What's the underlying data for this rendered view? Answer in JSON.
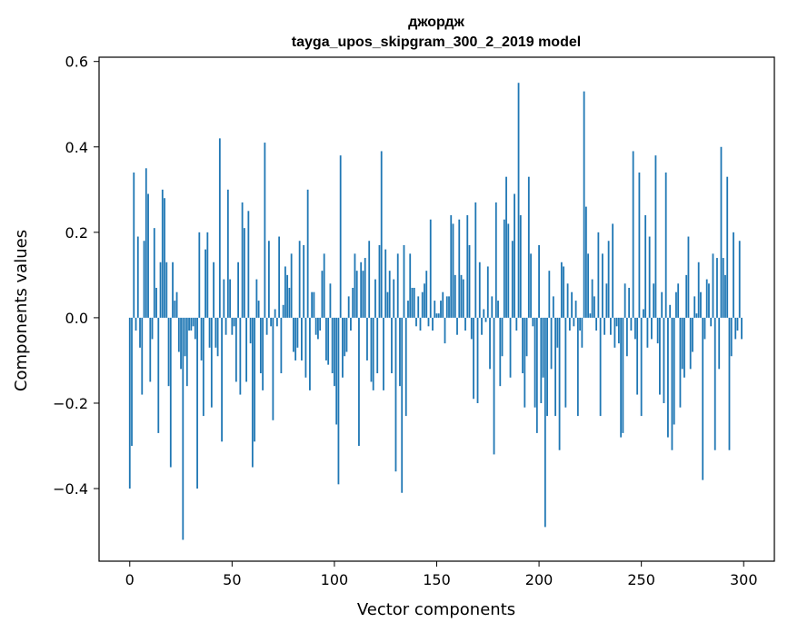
{
  "chart_data": {
    "type": "bar",
    "title": "джордж",
    "subtitle": "tayga_upos_skipgram_300_2_2019 model",
    "xlabel": "Vector components",
    "ylabel": "Components values",
    "xlim": [
      -15,
      315
    ],
    "ylim": [
      -0.57,
      0.61
    ],
    "xticks": [
      0,
      50,
      100,
      150,
      200,
      250,
      300
    ],
    "xtick_labels": [
      "0",
      "50",
      "100",
      "150",
      "200",
      "250",
      "300"
    ],
    "yticks": [
      -0.4,
      -0.2,
      0.0,
      0.2,
      0.4,
      0.6
    ],
    "ytick_labels": [
      "−0.4",
      "−0.2",
      "0.0",
      "0.2",
      "0.4",
      "0.6"
    ],
    "grid": false,
    "bar_color": "#1f77b4",
    "x": "0..299 (component index)",
    "values": [
      -0.4,
      -0.3,
      0.34,
      -0.03,
      0.19,
      -0.07,
      -0.18,
      0.18,
      0.35,
      0.29,
      -0.15,
      -0.05,
      0.21,
      0.07,
      -0.27,
      0.13,
      0.3,
      0.28,
      0.13,
      -0.16,
      -0.35,
      0.13,
      0.04,
      0.06,
      -0.08,
      -0.12,
      -0.52,
      -0.09,
      -0.16,
      -0.03,
      -0.03,
      -0.02,
      -0.05,
      -0.4,
      0.2,
      -0.1,
      -0.23,
      0.16,
      0.2,
      -0.07,
      -0.21,
      0.13,
      -0.07,
      -0.09,
      0.42,
      -0.29,
      0.09,
      -0.04,
      0.3,
      0.09,
      -0.04,
      -0.02,
      -0.15,
      0.13,
      -0.18,
      0.27,
      0.21,
      -0.15,
      0.25,
      -0.06,
      -0.35,
      -0.29,
      0.09,
      0.04,
      -0.13,
      -0.17,
      0.41,
      -0.04,
      0.18,
      -0.02,
      -0.24,
      0.02,
      -0.02,
      0.19,
      -0.13,
      0.03,
      0.12,
      0.1,
      0.07,
      0.15,
      -0.08,
      -0.1,
      -0.07,
      0.18,
      -0.1,
      0.17,
      -0.14,
      0.3,
      -0.17,
      0.06,
      0.06,
      -0.04,
      -0.05,
      -0.03,
      0.11,
      0.15,
      -0.1,
      -0.11,
      0.08,
      -0.13,
      -0.16,
      -0.25,
      -0.39,
      0.38,
      -0.14,
      -0.09,
      -0.08,
      0.05,
      -0.03,
      0.07,
      0.15,
      0.11,
      -0.3,
      0.13,
      0.11,
      0.14,
      -0.1,
      0.18,
      -0.15,
      -0.17,
      0.09,
      -0.13,
      0.17,
      0.39,
      -0.17,
      0.16,
      0.06,
      0.11,
      -0.13,
      0.09,
      -0.36,
      0.15,
      -0.16,
      -0.41,
      0.17,
      -0.23,
      0.04,
      0.15,
      0.07,
      0.07,
      -0.02,
      0.05,
      -0.03,
      0.06,
      0.08,
      0.11,
      -0.02,
      0.23,
      -0.03,
      0.04,
      0.01,
      0.01,
      0.04,
      0.06,
      -0.06,
      0.05,
      0.05,
      0.24,
      0.22,
      0.1,
      -0.04,
      0.23,
      0.1,
      0.09,
      -0.03,
      0.24,
      0.17,
      -0.05,
      -0.19,
      0.27,
      -0.2,
      0.13,
      -0.04,
      0.02,
      -0.01,
      0.12,
      -0.12,
      0.05,
      -0.32,
      0.27,
      0.04,
      -0.16,
      -0.09,
      0.23,
      0.33,
      0.22,
      -0.14,
      0.18,
      0.29,
      -0.03,
      0.55,
      0.24,
      -0.13,
      -0.21,
      -0.09,
      0.33,
      0.15,
      -0.02,
      -0.21,
      -0.27,
      0.17,
      -0.2,
      -0.14,
      -0.49,
      -0.23,
      0.11,
      -0.12,
      0.05,
      -0.23,
      -0.07,
      -0.31,
      0.13,
      0.12,
      -0.21,
      0.08,
      -0.03,
      0.06,
      -0.02,
      0.04,
      -0.23,
      -0.03,
      -0.07,
      0.53,
      0.26,
      0.15,
      0.01,
      0.09,
      0.05,
      -0.03,
      0.2,
      -0.23,
      0.15,
      -0.04,
      0.08,
      0.18,
      -0.04,
      0.22,
      -0.07,
      -0.02,
      -0.06,
      -0.28,
      -0.27,
      0.08,
      -0.09,
      0.07,
      -0.03,
      0.39,
      -0.05,
      -0.18,
      0.34,
      -0.23,
      0.02,
      0.24,
      -0.07,
      0.19,
      -0.05,
      0.08,
      0.38,
      -0.06,
      -0.18,
      0.06,
      -0.2,
      0.34,
      -0.28,
      0.03,
      -0.31,
      -0.25,
      0.06,
      0.08,
      -0.21,
      -0.12,
      -0.14,
      0.1,
      0.19,
      -0.12,
      -0.08,
      0.05,
      0.01,
      0.13,
      0.06,
      -0.38,
      -0.05,
      0.09,
      0.08,
      -0.02,
      0.15,
      -0.31,
      0.14,
      -0.12,
      0.4,
      0.14,
      0.1,
      0.33,
      -0.31,
      -0.09,
      0.2,
      -0.05,
      -0.03,
      0.18,
      -0.05
    ]
  }
}
